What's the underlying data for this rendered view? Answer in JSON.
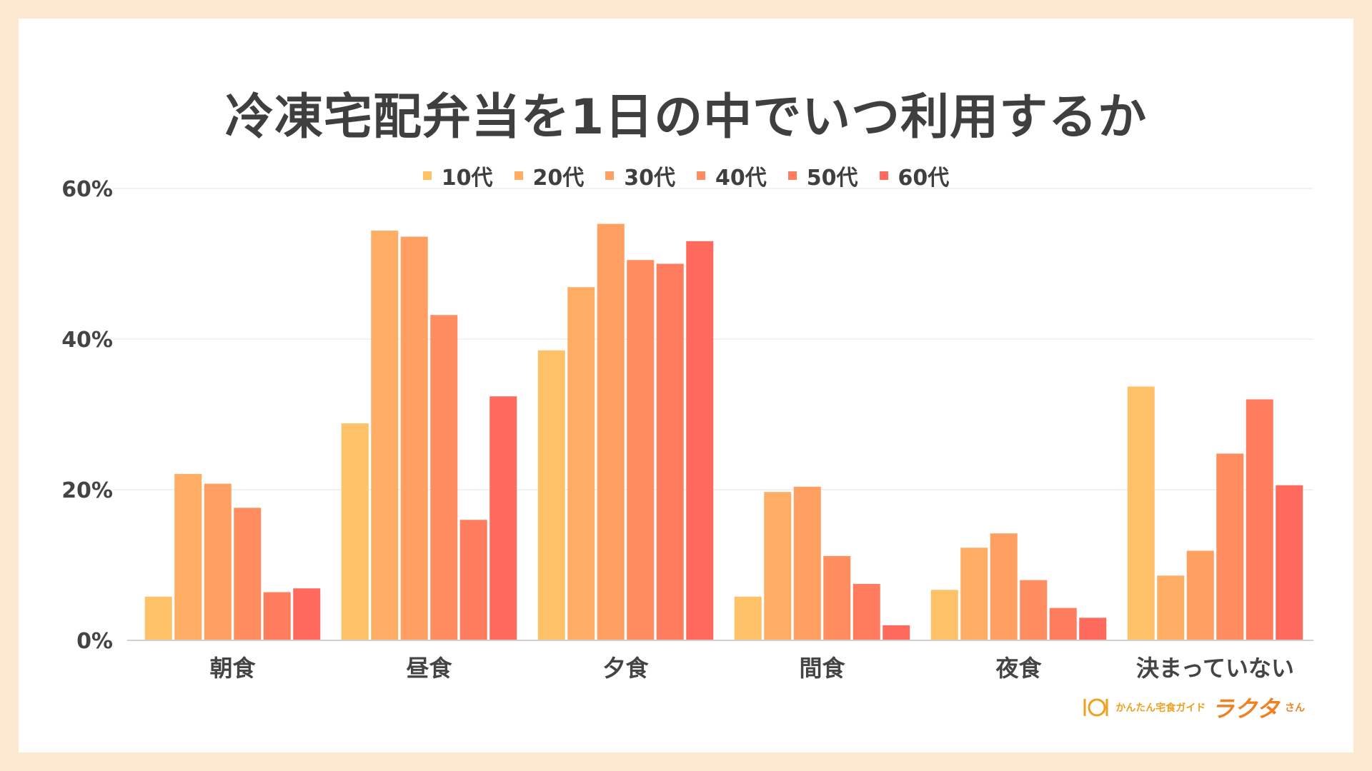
{
  "chart_data": {
    "type": "bar",
    "title": "冷凍宅配弁当を1日の中でいつ利用するか",
    "categories": [
      "朝食",
      "昼食",
      "夕食",
      "間食",
      "夜食",
      "決まっていない"
    ],
    "series": [
      {
        "name": "10代",
        "color": "#ffc168",
        "values": [
          5.8,
          28.8,
          38.5,
          5.8,
          6.7,
          33.7
        ]
      },
      {
        "name": "20代",
        "color": "#ffad65",
        "values": [
          22.1,
          54.4,
          46.9,
          19.7,
          12.3,
          8.6
        ]
      },
      {
        "name": "30代",
        "color": "#ffa062",
        "values": [
          20.8,
          53.6,
          55.3,
          20.4,
          14.2,
          11.9
        ]
      },
      {
        "name": "40代",
        "color": "#ff8d60",
        "values": [
          17.6,
          43.2,
          50.5,
          11.2,
          8.0,
          24.8
        ]
      },
      {
        "name": "50代",
        "color": "#ff7d5e",
        "values": [
          6.4,
          16.0,
          50.0,
          7.5,
          4.3,
          32.0
        ]
      },
      {
        "name": "60代",
        "color": "#ff6a5c",
        "values": [
          6.9,
          32.4,
          53.0,
          2.0,
          3.0,
          20.6
        ]
      }
    ],
    "yticks": [
      "0%",
      "20%",
      "40%",
      "60%"
    ],
    "ylim": [
      0,
      60
    ],
    "grid": true,
    "legend": "top-center"
  },
  "branding": {
    "tagline": "かんたん宅食ガイド",
    "name": "ラクタ",
    "suffix": "さん"
  }
}
